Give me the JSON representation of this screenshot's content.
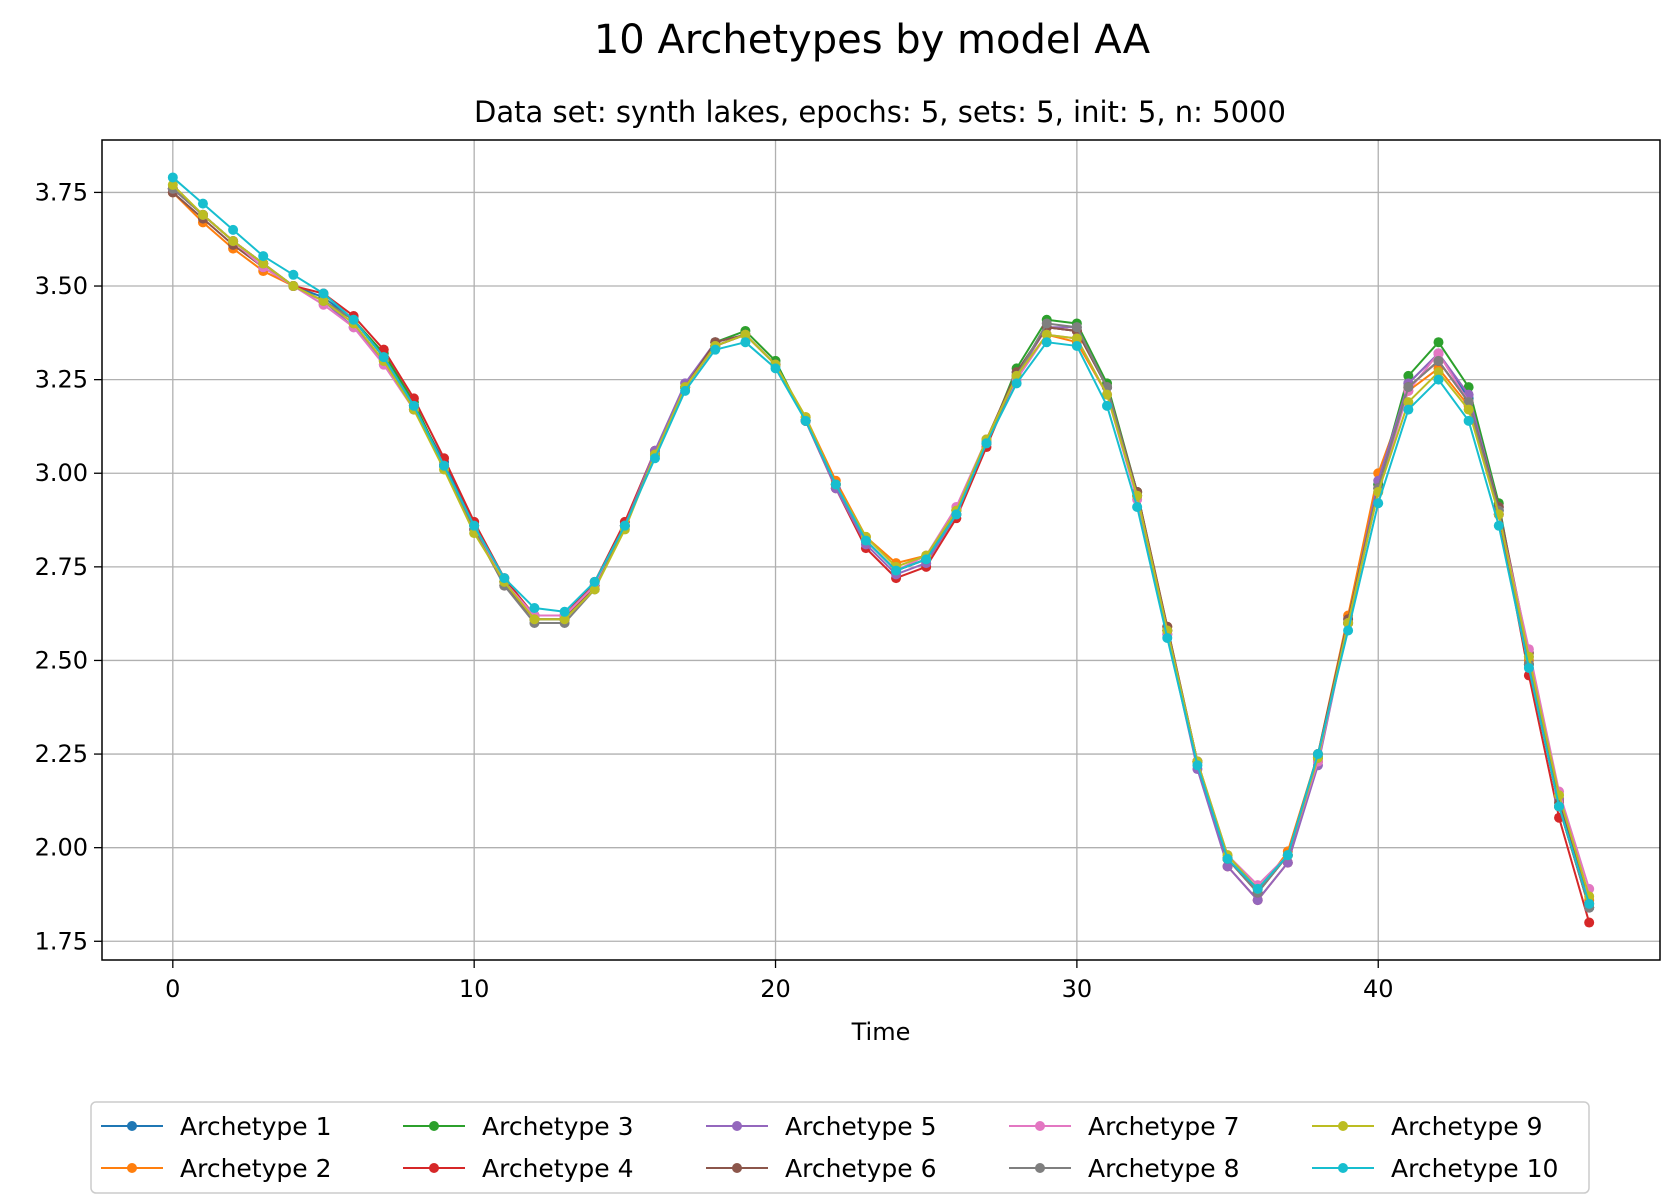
{
  "chart_data": {
    "type": "line",
    "title": "10 Archetypes by model AA",
    "subtitle": "Data set: synth lakes, epochs: 5, sets: 5, init: 5, n: 5000",
    "xlabel": "Time",
    "ylabel": "",
    "xlim": [
      -2.35,
      49.35
    ],
    "ylim": [
      1.7,
      3.89
    ],
    "xticks": [
      0,
      10,
      20,
      30,
      40
    ],
    "yticks": [
      1.75,
      2.0,
      2.25,
      2.5,
      2.75,
      3.0,
      3.25,
      3.5,
      3.75
    ],
    "ytick_labels": [
      "1.75",
      "2.00",
      "2.25",
      "2.50",
      "2.75",
      "3.00",
      "3.25",
      "3.50",
      "3.75"
    ],
    "grid": true,
    "legend_position": "bottom-center",
    "x": [
      0,
      1,
      2,
      3,
      4,
      5,
      6,
      7,
      8,
      9,
      10,
      11,
      12,
      13,
      14,
      15,
      16,
      17,
      18,
      19,
      20,
      21,
      22,
      23,
      24,
      25,
      26,
      27,
      28,
      29,
      30,
      31,
      32,
      33,
      34,
      35,
      36,
      37,
      38,
      39,
      40,
      41,
      42,
      43,
      44,
      45,
      46,
      47
    ],
    "base": [
      3.77,
      3.7,
      3.63,
      3.57,
      3.51,
      3.47,
      3.41,
      3.31,
      3.18,
      3.02,
      2.85,
      2.71,
      2.62,
      2.62,
      2.7,
      2.86,
      3.05,
      3.23,
      3.34,
      3.37,
      3.29,
      3.14,
      2.97,
      2.82,
      2.74,
      2.77,
      2.89,
      3.08,
      3.26,
      3.38,
      3.37,
      3.22,
      2.94,
      2.58,
      2.23,
      1.97,
      1.88,
      1.98,
      2.24,
      2.6,
      2.96,
      3.23,
      3.3,
      3.19,
      2.89,
      2.49,
      2.11,
      1.84
    ],
    "series": [
      {
        "name": "Archetype 1",
        "color": "#1f77b4",
        "offsets": [
          -0.01,
          -0.01,
          -0.01,
          -0.01,
          -0.01,
          0.0,
          0.0,
          0.0,
          0.0,
          0.01,
          0.01,
          0.0,
          0.0,
          0.0,
          0.0,
          0.0,
          0.0,
          0.0,
          0.0,
          0.0,
          0.0,
          0.0,
          0.0,
          0.0,
          0.0,
          0.0,
          0.0,
          0.0,
          0.01,
          0.01,
          0.01,
          0.01,
          0.01,
          0.0,
          0.0,
          0.0,
          0.0,
          0.0,
          0.0,
          0.0,
          0.01,
          0.01,
          0.02,
          0.01,
          0.01,
          0.0,
          0.0,
          0.0
        ]
      },
      {
        "name": "Archetype 2",
        "color": "#ff7f0e",
        "offsets": [
          -0.02,
          -0.03,
          -0.03,
          -0.03,
          -0.01,
          -0.01,
          0.0,
          0.0,
          0.0,
          0.0,
          0.0,
          0.0,
          0.0,
          0.0,
          0.0,
          0.0,
          0.0,
          0.0,
          0.0,
          0.0,
          0.0,
          0.01,
          0.01,
          0.01,
          0.02,
          0.01,
          0.01,
          0.01,
          0.0,
          -0.01,
          -0.02,
          -0.01,
          0.01,
          0.01,
          0.0,
          0.0,
          0.0,
          0.01,
          0.01,
          0.02,
          0.04,
          -0.01,
          -0.02,
          -0.01,
          0.0,
          0.01,
          0.02,
          0.02
        ]
      },
      {
        "name": "Archetype 3",
        "color": "#2ca02c",
        "offsets": [
          -0.01,
          -0.01,
          -0.01,
          -0.01,
          -0.01,
          -0.01,
          0.0,
          0.01,
          0.01,
          0.0,
          0.01,
          0.0,
          -0.01,
          -0.01,
          0.0,
          0.0,
          0.0,
          0.0,
          0.01,
          0.01,
          0.01,
          0.0,
          0.0,
          0.0,
          0.0,
          0.0,
          0.0,
          0.0,
          0.02,
          0.03,
          0.03,
          0.02,
          0.01,
          0.0,
          0.0,
          0.0,
          0.0,
          0.0,
          0.0,
          0.0,
          0.01,
          0.03,
          0.05,
          0.04,
          0.03,
          0.0,
          0.0,
          0.0
        ]
      },
      {
        "name": "Archetype 4",
        "color": "#d62728",
        "offsets": [
          -0.01,
          -0.01,
          -0.01,
          -0.01,
          -0.01,
          0.01,
          0.01,
          0.02,
          0.02,
          0.02,
          0.02,
          0.01,
          0.0,
          0.0,
          0.01,
          0.01,
          0.01,
          0.0,
          0.0,
          0.0,
          0.0,
          0.0,
          -0.01,
          -0.02,
          -0.02,
          -0.02,
          -0.01,
          -0.01,
          0.0,
          0.01,
          0.01,
          0.01,
          0.0,
          0.0,
          0.0,
          -0.02,
          -0.02,
          -0.02,
          -0.01,
          0.0,
          0.0,
          0.0,
          0.0,
          0.0,
          0.0,
          -0.03,
          -0.03,
          -0.04
        ]
      },
      {
        "name": "Archetype 5",
        "color": "#9467bd",
        "offsets": [
          -0.01,
          -0.01,
          -0.01,
          -0.01,
          -0.01,
          -0.01,
          -0.02,
          -0.01,
          -0.01,
          0.0,
          0.0,
          0.0,
          0.0,
          0.0,
          0.0,
          0.0,
          0.01,
          0.01,
          0.01,
          0.0,
          0.0,
          0.0,
          -0.01,
          -0.01,
          -0.01,
          -0.01,
          0.0,
          0.0,
          0.0,
          0.01,
          0.02,
          0.01,
          0.0,
          -0.01,
          -0.02,
          -0.02,
          -0.02,
          -0.02,
          -0.02,
          0.0,
          0.02,
          0.01,
          0.02,
          0.02,
          0.02,
          0.02,
          0.02,
          0.0
        ]
      },
      {
        "name": "Archetype 6",
        "color": "#8c564b",
        "offsets": [
          -0.02,
          -0.02,
          -0.02,
          -0.02,
          -0.01,
          -0.01,
          0.0,
          0.0,
          0.0,
          0.0,
          0.0,
          -0.01,
          -0.01,
          -0.01,
          0.0,
          0.0,
          0.0,
          0.0,
          0.01,
          0.0,
          0.0,
          0.0,
          0.0,
          0.0,
          0.0,
          0.0,
          0.01,
          0.01,
          0.01,
          0.01,
          0.01,
          0.01,
          0.01,
          0.01,
          0.0,
          0.0,
          0.0,
          0.0,
          0.01,
          0.01,
          0.0,
          0.0,
          0.0,
          0.0,
          0.02,
          0.03,
          0.01,
          0.01
        ]
      },
      {
        "name": "Archetype 7",
        "color": "#e377c2",
        "offsets": [
          -0.01,
          -0.01,
          -0.01,
          -0.02,
          -0.01,
          -0.02,
          -0.02,
          -0.02,
          -0.01,
          0.0,
          0.0,
          0.0,
          0.0,
          0.0,
          0.0,
          0.0,
          0.0,
          0.0,
          0.0,
          0.0,
          0.0,
          0.0,
          0.0,
          0.0,
          0.0,
          0.01,
          0.02,
          0.01,
          -0.01,
          -0.01,
          -0.01,
          -0.01,
          -0.01,
          -0.01,
          0.0,
          0.01,
          0.02,
          0.0,
          -0.01,
          0.0,
          -0.01,
          -0.01,
          0.02,
          0.0,
          0.0,
          0.04,
          0.04,
          0.05
        ]
      },
      {
        "name": "Archetype 8",
        "color": "#7f7f7f",
        "offsets": [
          -0.01,
          -0.01,
          -0.01,
          -0.01,
          -0.01,
          -0.01,
          0.0,
          0.0,
          0.0,
          0.0,
          0.0,
          -0.01,
          -0.02,
          -0.02,
          -0.01,
          0.0,
          0.0,
          0.0,
          0.0,
          0.0,
          0.0,
          0.0,
          0.0,
          0.0,
          0.0,
          0.0,
          0.0,
          0.0,
          0.0,
          0.02,
          0.02,
          0.01,
          0.0,
          0.0,
          0.0,
          0.0,
          0.0,
          0.0,
          0.0,
          0.0,
          0.0,
          0.0,
          0.0,
          0.0,
          0.01,
          0.0,
          0.0,
          0.0
        ]
      },
      {
        "name": "Archetype 9",
        "color": "#bcbd22",
        "offsets": [
          0.0,
          -0.01,
          -0.01,
          -0.01,
          -0.01,
          -0.01,
          -0.01,
          -0.01,
          -0.01,
          -0.01,
          -0.01,
          0.0,
          -0.01,
          -0.01,
          -0.01,
          -0.01,
          0.0,
          0.0,
          0.0,
          0.0,
          0.0,
          0.01,
          0.0,
          0.01,
          0.01,
          0.01,
          0.01,
          0.01,
          0.0,
          -0.01,
          -0.01,
          -0.01,
          0.0,
          0.0,
          0.0,
          0.01,
          0.01,
          0.0,
          0.0,
          0.0,
          -0.01,
          -0.04,
          -0.03,
          -0.02,
          0.0,
          0.02,
          0.03,
          0.03
        ]
      },
      {
        "name": "Archetype 10",
        "color": "#17becf",
        "offsets": [
          0.02,
          0.02,
          0.02,
          0.01,
          0.02,
          0.01,
          0.0,
          0.0,
          0.0,
          0.0,
          0.01,
          0.01,
          0.02,
          0.01,
          0.01,
          0.0,
          -0.01,
          -0.01,
          -0.01,
          -0.02,
          -0.01,
          0.0,
          0.0,
          0.0,
          0.0,
          0.0,
          0.0,
          0.0,
          -0.02,
          -0.03,
          -0.03,
          -0.04,
          -0.03,
          -0.02,
          -0.01,
          0.0,
          0.01,
          0.0,
          0.01,
          -0.02,
          -0.04,
          -0.06,
          -0.05,
          -0.05,
          -0.03,
          -0.01,
          0.0,
          0.01
        ]
      }
    ]
  }
}
